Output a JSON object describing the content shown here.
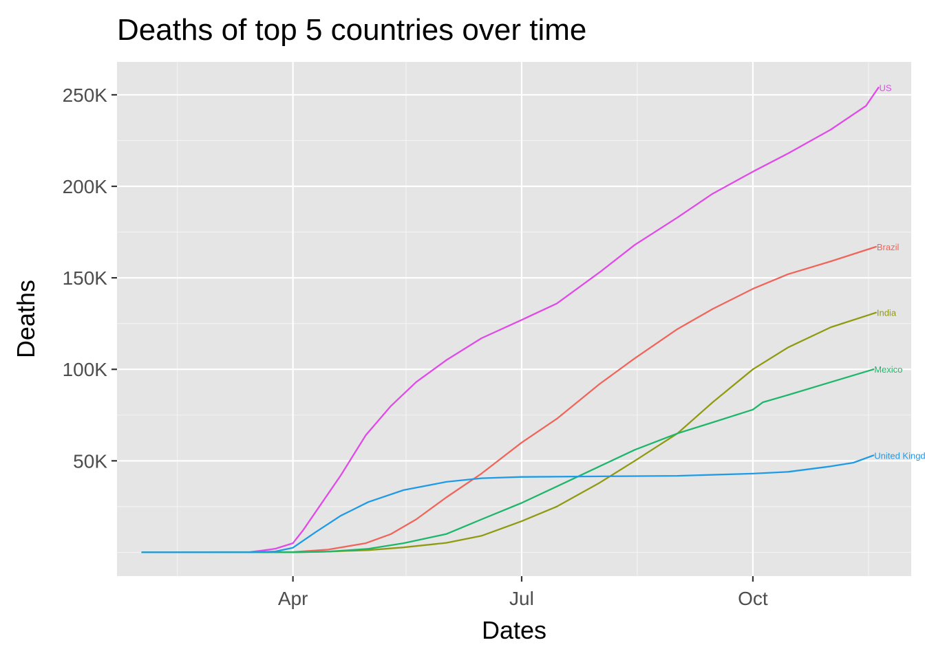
{
  "chart_data": {
    "type": "line",
    "title": "Deaths of top 5 countries over time",
    "xlabel": "Dates",
    "ylabel": "Deaths",
    "x_range": [
      "2020-01-22",
      "2020-12-03"
    ],
    "ylim": [
      -13000,
      268000
    ],
    "x_ticks": [
      {
        "date": "2020-04-01",
        "label": "Apr"
      },
      {
        "date": "2020-07-01",
        "label": "Jul"
      },
      {
        "date": "2020-10-01",
        "label": "Oct"
      }
    ],
    "x_minor_dates": [
      "2020-02-15",
      "2020-05-16",
      "2020-08-16",
      "2020-11-16"
    ],
    "y_ticks": [
      {
        "value": 50000,
        "label": "50K"
      },
      {
        "value": 100000,
        "label": "100K"
      },
      {
        "value": 150000,
        "label": "150K"
      },
      {
        "value": 200000,
        "label": "200K"
      },
      {
        "value": 250000,
        "label": "250K"
      }
    ],
    "y_minor_values": [
      0,
      25000,
      75000,
      125000,
      175000,
      225000
    ],
    "grid": true,
    "legend": "none",
    "series": [
      {
        "name": "US",
        "color": "#e04ae8",
        "points": [
          [
            "2020-02-01",
            0
          ],
          [
            "2020-03-15",
            200
          ],
          [
            "2020-03-20",
            1000
          ],
          [
            "2020-03-25",
            2000
          ],
          [
            "2020-04-01",
            5000
          ],
          [
            "2020-04-05",
            12000
          ],
          [
            "2020-04-10",
            22000
          ],
          [
            "2020-04-20",
            42000
          ],
          [
            "2020-04-30",
            64000
          ],
          [
            "2020-05-10",
            80000
          ],
          [
            "2020-05-20",
            93000
          ],
          [
            "2020-06-01",
            105000
          ],
          [
            "2020-06-15",
            117000
          ],
          [
            "2020-07-01",
            127000
          ],
          [
            "2020-07-15",
            136000
          ],
          [
            "2020-08-01",
            153000
          ],
          [
            "2020-08-15",
            168000
          ],
          [
            "2020-09-01",
            183000
          ],
          [
            "2020-09-15",
            196000
          ],
          [
            "2020-10-01",
            208000
          ],
          [
            "2020-10-15",
            218000
          ],
          [
            "2020-11-01",
            231000
          ],
          [
            "2020-11-15",
            244000
          ],
          [
            "2020-11-20",
            254000
          ]
        ]
      },
      {
        "name": "Brazil",
        "color": "#f0655a",
        "points": [
          [
            "2020-02-01",
            0
          ],
          [
            "2020-03-20",
            50
          ],
          [
            "2020-04-01",
            200
          ],
          [
            "2020-04-15",
            1500
          ],
          [
            "2020-04-30",
            5000
          ],
          [
            "2020-05-10",
            10000
          ],
          [
            "2020-05-20",
            18000
          ],
          [
            "2020-06-01",
            30000
          ],
          [
            "2020-06-15",
            43000
          ],
          [
            "2020-07-01",
            60000
          ],
          [
            "2020-07-15",
            73000
          ],
          [
            "2020-08-01",
            92000
          ],
          [
            "2020-08-15",
            106000
          ],
          [
            "2020-09-01",
            122000
          ],
          [
            "2020-09-15",
            133000
          ],
          [
            "2020-10-01",
            144000
          ],
          [
            "2020-10-15",
            152000
          ],
          [
            "2020-11-01",
            159000
          ],
          [
            "2020-11-19",
            167000
          ]
        ]
      },
      {
        "name": "India",
        "color": "#8f9a10",
        "points": [
          [
            "2020-02-01",
            0
          ],
          [
            "2020-04-01",
            50
          ],
          [
            "2020-04-15",
            400
          ],
          [
            "2020-05-01",
            1200
          ],
          [
            "2020-05-15",
            2700
          ],
          [
            "2020-06-01",
            5200
          ],
          [
            "2020-06-15",
            9000
          ],
          [
            "2020-07-01",
            17000
          ],
          [
            "2020-07-15",
            25000
          ],
          [
            "2020-08-01",
            38000
          ],
          [
            "2020-08-15",
            50000
          ],
          [
            "2020-09-01",
            65000
          ],
          [
            "2020-09-15",
            82000
          ],
          [
            "2020-10-01",
            100000
          ],
          [
            "2020-10-15",
            112000
          ],
          [
            "2020-11-01",
            123000
          ],
          [
            "2020-11-19",
            131000
          ]
        ]
      },
      {
        "name": "Mexico",
        "color": "#1db66a",
        "points": [
          [
            "2020-02-01",
            0
          ],
          [
            "2020-04-01",
            50
          ],
          [
            "2020-04-15",
            400
          ],
          [
            "2020-05-01",
            1900
          ],
          [
            "2020-05-15",
            5000
          ],
          [
            "2020-06-01",
            10000
          ],
          [
            "2020-06-15",
            18000
          ],
          [
            "2020-07-01",
            27000
          ],
          [
            "2020-07-15",
            36000
          ],
          [
            "2020-08-01",
            47000
          ],
          [
            "2020-08-15",
            56000
          ],
          [
            "2020-09-01",
            65000
          ],
          [
            "2020-09-15",
            71000
          ],
          [
            "2020-10-01",
            78000
          ],
          [
            "2020-10-05",
            82000
          ],
          [
            "2020-10-15",
            86000
          ],
          [
            "2020-11-01",
            93000
          ],
          [
            "2020-11-18",
            100000
          ]
        ]
      },
      {
        "name": "United Kingdom",
        "color": "#1e9ae6",
        "points": [
          [
            "2020-02-01",
            0
          ],
          [
            "2020-03-15",
            30
          ],
          [
            "2020-03-25",
            500
          ],
          [
            "2020-04-01",
            2500
          ],
          [
            "2020-04-10",
            11000
          ],
          [
            "2020-04-20",
            20000
          ],
          [
            "2020-05-01",
            27500
          ],
          [
            "2020-05-15",
            34000
          ],
          [
            "2020-06-01",
            38500
          ],
          [
            "2020-06-15",
            40500
          ],
          [
            "2020-07-01",
            41200
          ],
          [
            "2020-08-01",
            41500
          ],
          [
            "2020-09-01",
            41800
          ],
          [
            "2020-10-01",
            43000
          ],
          [
            "2020-10-15",
            44000
          ],
          [
            "2020-11-01",
            47000
          ],
          [
            "2020-11-10",
            49000
          ],
          [
            "2020-11-18",
            53000
          ]
        ]
      }
    ]
  }
}
